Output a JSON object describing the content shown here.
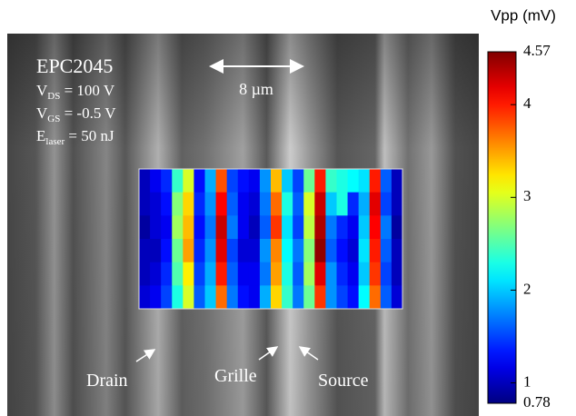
{
  "chart_data": {
    "type": "heatmap",
    "title": "Vpp (mV)",
    "colormap": "jet",
    "ylim": [
      0.78,
      4.57
    ],
    "yticks": [
      0.78,
      1,
      2,
      3,
      4,
      4.57
    ],
    "values": [
      [
        1.0,
        1.2,
        1.4,
        2.4,
        3.0,
        1.3,
        1.9,
        3.8,
        1.5,
        1.3,
        1.2,
        1.8,
        3.4,
        2.0,
        1.5,
        2.6,
        4.0,
        2.4,
        2.3,
        2.2,
        2.1,
        4.0,
        1.6,
        1.0
      ],
      [
        1.0,
        1.1,
        1.3,
        2.7,
        3.3,
        1.4,
        1.8,
        4.1,
        1.6,
        1.2,
        1.1,
        1.7,
        3.7,
        2.3,
        1.6,
        3.0,
        4.3,
        2.0,
        2.3,
        1.4,
        1.9,
        4.2,
        1.5,
        1.0
      ],
      [
        0.9,
        1.1,
        1.2,
        2.8,
        3.4,
        1.3,
        1.7,
        4.3,
        1.7,
        1.2,
        1.0,
        1.6,
        3.9,
        2.1,
        1.5,
        2.9,
        4.4,
        1.7,
        1.4,
        1.2,
        2.0,
        4.1,
        1.7,
        0.9
      ],
      [
        1.0,
        1.0,
        1.3,
        2.6,
        3.5,
        1.4,
        1.8,
        4.2,
        1.5,
        1.1,
        1.1,
        1.8,
        3.6,
        2.2,
        1.7,
        2.7,
        4.5,
        1.6,
        1.3,
        1.1,
        2.1,
        4.0,
        1.6,
        1.0
      ],
      [
        1.0,
        1.1,
        1.4,
        2.5,
        3.2,
        1.5,
        1.9,
        4.0,
        1.6,
        1.2,
        1.2,
        1.7,
        3.5,
        2.3,
        1.6,
        2.8,
        4.2,
        1.8,
        1.4,
        1.2,
        2.0,
        3.9,
        1.5,
        1.0
      ],
      [
        1.1,
        1.2,
        1.5,
        2.3,
        3.0,
        1.6,
        2.0,
        3.7,
        1.7,
        1.3,
        1.2,
        1.9,
        3.3,
        2.4,
        1.7,
        2.6,
        3.9,
        1.8,
        1.5,
        1.3,
        2.2,
        3.7,
        1.6,
        1.1
      ]
    ],
    "annotations": {
      "device": "EPC2045",
      "conditions": [
        {
          "symbol": "V",
          "subscript": "DS",
          "text": " = 100 V"
        },
        {
          "symbol": "V",
          "subscript": "GS",
          "text": " = -0.5 V"
        },
        {
          "symbol": "E",
          "subscript": "laser",
          "text": " = 50 nJ"
        }
      ],
      "scale": "8 µm",
      "labels": [
        "Drain",
        "Grille",
        "Source"
      ]
    }
  }
}
